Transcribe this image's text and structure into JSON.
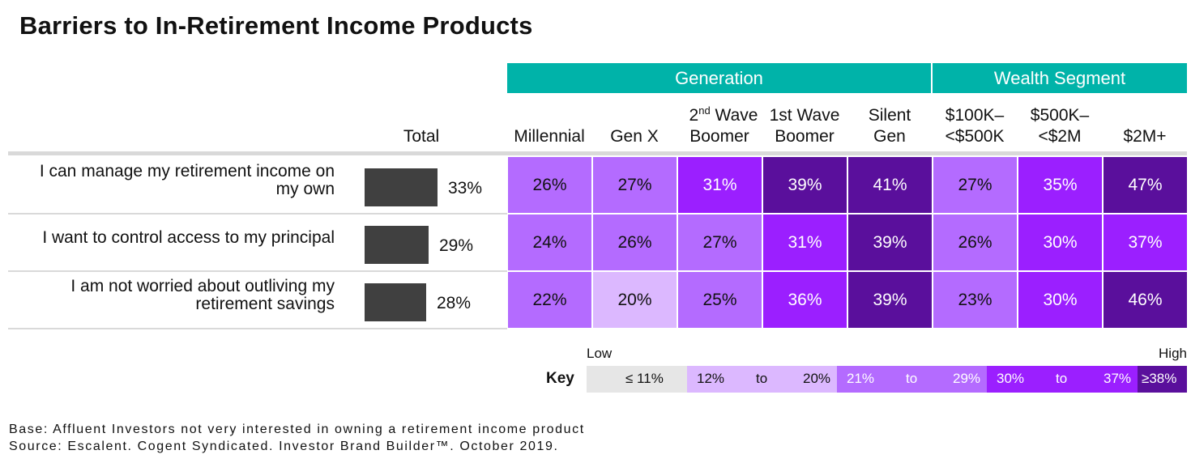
{
  "title": "Barriers to In-Retirement Income Products",
  "chart_data": {
    "type": "table",
    "title": "Barriers to In-Retirement Income Products",
    "groups": [
      {
        "name": "Generation",
        "columns": [
          "Millennial",
          "Gen X",
          "2nd Wave Boomer",
          "1st Wave Boomer",
          "Silent Gen"
        ]
      },
      {
        "name": "Wealth Segment",
        "columns": [
          "$100K–<$500K",
          "$500K–<$2M",
          "$2M+"
        ]
      }
    ],
    "total_header": "Total",
    "rows": [
      {
        "label_lines": [
          "I can manage my retirement income on",
          "my own"
        ],
        "total": 33,
        "total_label": "33%",
        "values": [
          26,
          27,
          31,
          39,
          41,
          27,
          35,
          47
        ],
        "labels": [
          "26%",
          "27%",
          "31%",
          "39%",
          "41%",
          "27%",
          "35%",
          "47%"
        ]
      },
      {
        "label_lines": [
          "I want to control access to my principal"
        ],
        "total": 29,
        "total_label": "29%",
        "values": [
          24,
          26,
          27,
          31,
          39,
          26,
          30,
          37
        ],
        "labels": [
          "24%",
          "26%",
          "27%",
          "31%",
          "39%",
          "26%",
          "30%",
          "37%"
        ]
      },
      {
        "label_lines": [
          "I am not worried about outliving my",
          "retirement savings"
        ],
        "total": 28,
        "total_label": "28%",
        "values": [
          22,
          20,
          25,
          36,
          39,
          23,
          30,
          46
        ],
        "labels": [
          "22%",
          "20%",
          "25%",
          "36%",
          "39%",
          "23%",
          "30%",
          "46%"
        ]
      }
    ],
    "key": {
      "label": "Key",
      "low": "Low",
      "high": "High",
      "bins": [
        {
          "from": null,
          "to": 11,
          "text": [
            "≤ 11%"
          ],
          "color": "#e6e6e6"
        },
        {
          "from": 12,
          "to": 20,
          "text": [
            "12%",
            "to",
            "20%"
          ],
          "color": "#dcb8ff"
        },
        {
          "from": 21,
          "to": 29,
          "text": [
            "21%",
            "to",
            "29%"
          ],
          "color": "#b46bff"
        },
        {
          "from": 30,
          "to": 37,
          "text": [
            "30%",
            "to",
            "37%"
          ],
          "color": "#9b1fff"
        },
        {
          "from": 38,
          "to": null,
          "text": [
            "≥38%"
          ],
          "color": "#5a0f9c"
        }
      ]
    }
  },
  "column_headers": [
    {
      "lines": [
        "Millennial"
      ]
    },
    {
      "lines": [
        "Gen X"
      ]
    },
    {
      "lines": [
        "2nd Wave",
        "Boomer"
      ],
      "sup": "nd"
    },
    {
      "lines": [
        "1st Wave",
        "Boomer"
      ]
    },
    {
      "lines": [
        "Silent",
        "Gen"
      ]
    },
    {
      "lines": [
        "$100K–",
        "<$500K"
      ]
    },
    {
      "lines": [
        "$500K–",
        "<$2M"
      ]
    },
    {
      "lines": [
        "$2M+"
      ]
    }
  ],
  "footer": {
    "base": "Base: Affluent Investors not very interested in owning a retirement income product",
    "source": "Source: Escalent. Cogent Syndicated. Investor Brand Builder™. October 2019."
  }
}
